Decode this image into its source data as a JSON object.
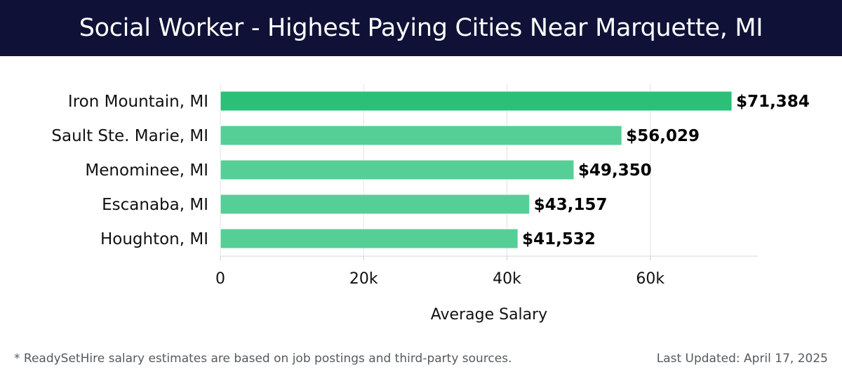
{
  "header": {
    "title": "Social Worker - Highest Paying Cities Near Marquette, MI"
  },
  "footer": {
    "note": "* ReadySetHire salary estimates are based on job postings and third-party sources.",
    "updated": "Last Updated: April 17, 2025"
  },
  "colors": {
    "header_bg": "#0f1236",
    "bar_top": "#2bbf78",
    "bar": "#56cf97",
    "grid": "#e2e2e2"
  },
  "chart_data": {
    "type": "bar",
    "orientation": "horizontal",
    "title": "Social Worker - Highest Paying Cities Near Marquette, MI",
    "categories": [
      "Iron Mountain, MI",
      "Sault Ste. Marie, MI",
      "Menominee, MI",
      "Escanaba, MI",
      "Houghton, MI"
    ],
    "values": [
      71384,
      56029,
      49350,
      43157,
      41532
    ],
    "value_labels": [
      "$71,384",
      "$56,029",
      "$49,350",
      "$43,157",
      "$41,532"
    ],
    "xlabel": "Average Salary",
    "ylabel": "",
    "xlim": [
      0,
      75000
    ],
    "xticks": [
      0,
      20000,
      40000,
      60000
    ],
    "xtick_labels": [
      "0",
      "20k",
      "40k",
      "60k"
    ],
    "grid": "vertical",
    "legend": "none"
  }
}
